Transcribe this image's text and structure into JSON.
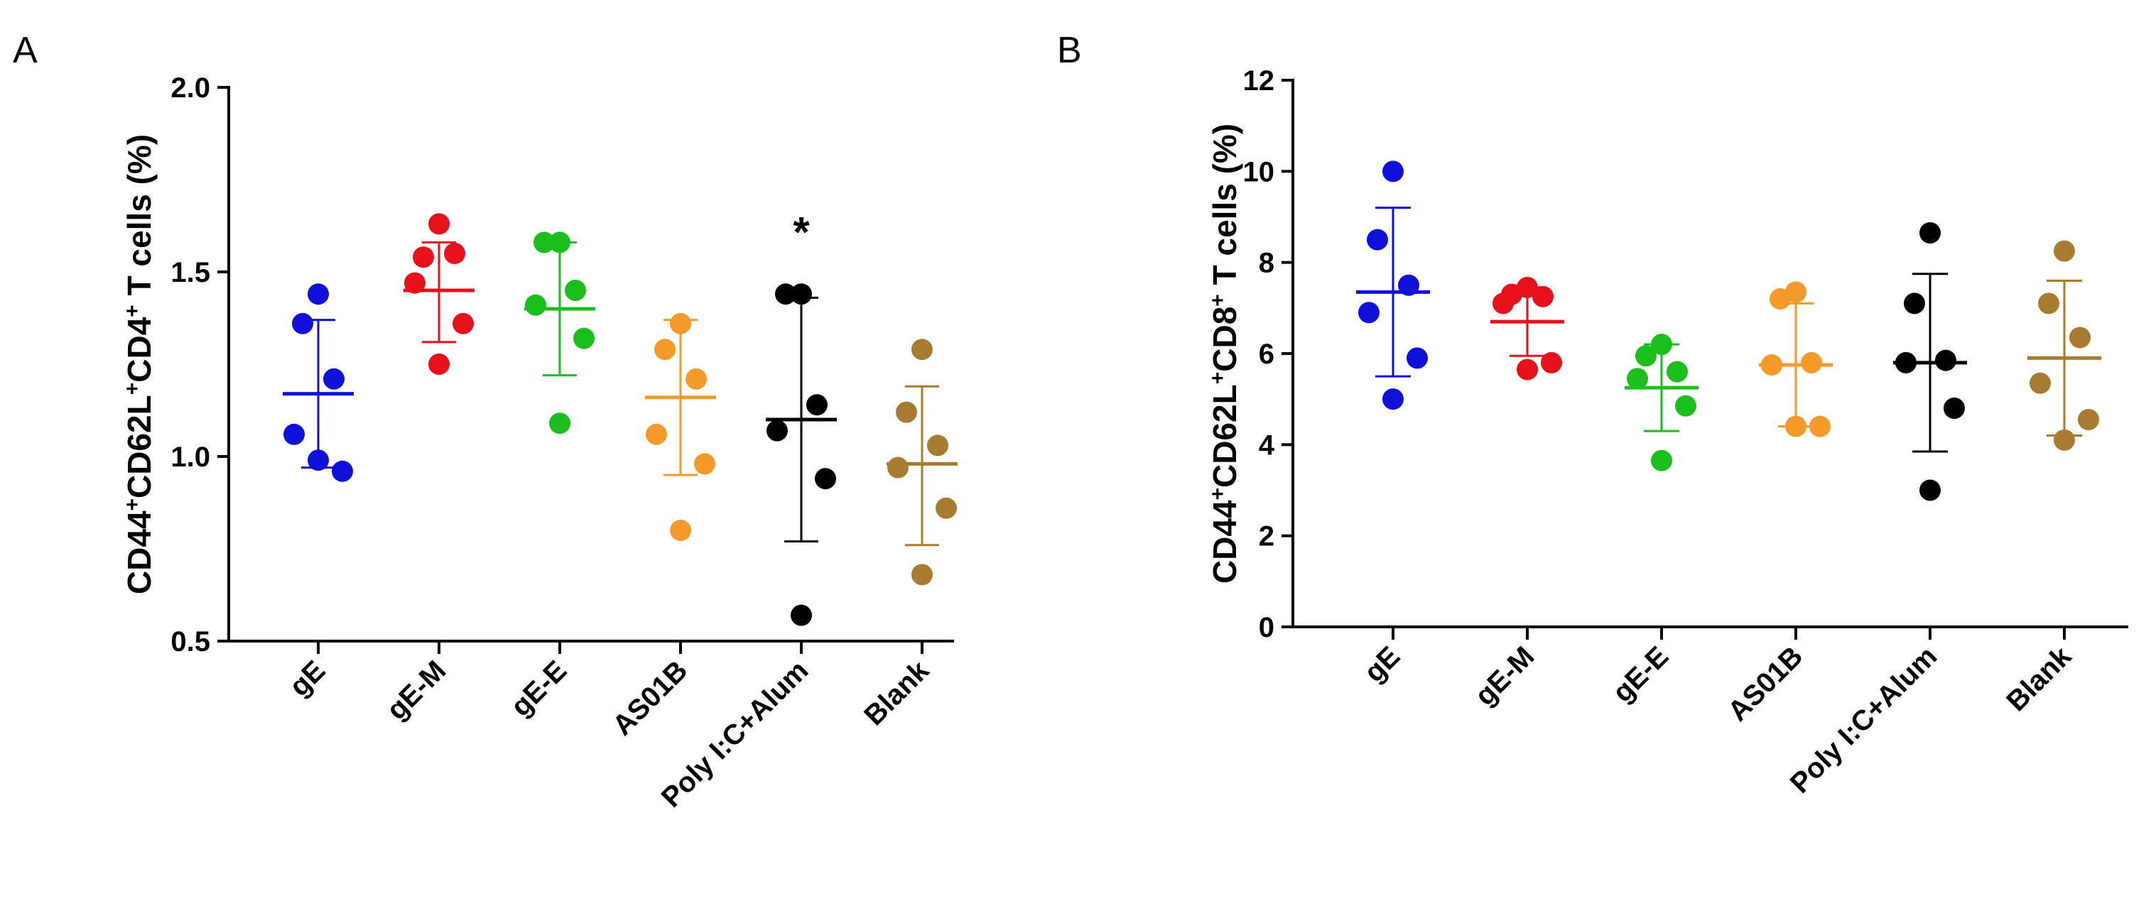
{
  "chart_data": [
    {
      "panel": "A",
      "type": "scatter",
      "ylabel_parts": [
        {
          "t": "CD44",
          "sup": false
        },
        {
          "t": "+",
          "sup": true
        },
        {
          "t": "CD62L",
          "sup": false
        },
        {
          "t": "+",
          "sup": true
        },
        {
          "t": "CD4",
          "sup": false
        },
        {
          "t": "+",
          "sup": true
        },
        {
          "t": " T cells (%)",
          "sup": false
        }
      ],
      "ylim": [
        0.5,
        2.0
      ],
      "yticks": [
        "0.5",
        "1.0",
        "1.5",
        "2.0"
      ],
      "categories": [
        "gE",
        "gE-M",
        "gE-E",
        "AS01B",
        "Poly I:C+Alum",
        "Blank"
      ],
      "colors": [
        "#1010dd",
        "#e8101a",
        "#1bbf1b",
        "#f59a2a",
        "#000000",
        "#a87c30"
      ],
      "groups": [
        {
          "points": [
            1.44,
            1.36,
            1.21,
            1.06,
            0.96,
            0.99
          ],
          "mean": 1.17,
          "sd_low": 0.97,
          "sd_high": 1.37
        },
        {
          "points": [
            1.63,
            1.54,
            1.55,
            1.47,
            1.36,
            1.25
          ],
          "mean": 1.45,
          "sd_low": 1.31,
          "sd_high": 1.58
        },
        {
          "points": [
            1.58,
            1.58,
            1.45,
            1.41,
            1.32,
            1.09
          ],
          "mean": 1.4,
          "sd_low": 1.22,
          "sd_high": 1.58
        },
        {
          "points": [
            1.36,
            1.29,
            1.21,
            1.06,
            0.98,
            0.8
          ],
          "mean": 1.16,
          "sd_low": 0.95,
          "sd_high": 1.37
        },
        {
          "points": [
            1.44,
            1.44,
            1.14,
            1.07,
            0.94,
            0.57
          ],
          "mean": 1.1,
          "sd_low": 0.77,
          "sd_high": 1.43
        },
        {
          "points": [
            1.29,
            1.12,
            1.03,
            0.97,
            0.86,
            0.68
          ],
          "mean": 0.98,
          "sd_low": 0.76,
          "sd_high": 1.19
        }
      ],
      "annotations": [
        {
          "category": "Poly I:C+Alum",
          "text": "*"
        }
      ]
    },
    {
      "panel": "B",
      "type": "scatter",
      "ylabel_parts": [
        {
          "t": "CD44",
          "sup": false
        },
        {
          "t": "+",
          "sup": true
        },
        {
          "t": "CD62L",
          "sup": false
        },
        {
          "t": "+",
          "sup": true
        },
        {
          "t": "CD8",
          "sup": false
        },
        {
          "t": "+",
          "sup": true
        },
        {
          "t": " T cells (%)",
          "sup": false
        }
      ],
      "ylim": [
        0,
        12
      ],
      "yticks": [
        "0",
        "2",
        "4",
        "6",
        "8",
        "10",
        "12"
      ],
      "categories": [
        "gE",
        "gE-M",
        "gE-E",
        "AS01B",
        "Poly I:C+Alum",
        "Blank"
      ],
      "colors": [
        "#1010dd",
        "#e8101a",
        "#1bbf1b",
        "#f59a2a",
        "#000000",
        "#a87c30"
      ],
      "groups": [
        {
          "points": [
            10.0,
            8.5,
            7.5,
            6.9,
            5.9,
            5.0
          ],
          "mean": 7.35,
          "sd_low": 5.5,
          "sd_high": 9.2
        },
        {
          "points": [
            7.45,
            7.3,
            7.25,
            7.1,
            5.8,
            5.65
          ],
          "mean": 6.7,
          "sd_low": 5.95,
          "sd_high": 7.45
        },
        {
          "points": [
            6.2,
            5.95,
            5.6,
            5.45,
            4.85,
            3.65
          ],
          "mean": 5.25,
          "sd_low": 4.3,
          "sd_high": 6.2
        },
        {
          "points": [
            7.35,
            7.2,
            5.8,
            5.75,
            4.4,
            4.4
          ],
          "mean": 5.75,
          "sd_low": 4.4,
          "sd_high": 7.1
        },
        {
          "points": [
            8.65,
            7.1,
            5.85,
            5.8,
            4.8,
            3.0
          ],
          "mean": 5.8,
          "sd_low": 3.85,
          "sd_high": 7.75
        },
        {
          "points": [
            8.25,
            7.1,
            6.35,
            5.35,
            4.55,
            4.1
          ],
          "mean": 5.9,
          "sd_low": 4.2,
          "sd_high": 7.6
        }
      ],
      "annotations": []
    }
  ]
}
